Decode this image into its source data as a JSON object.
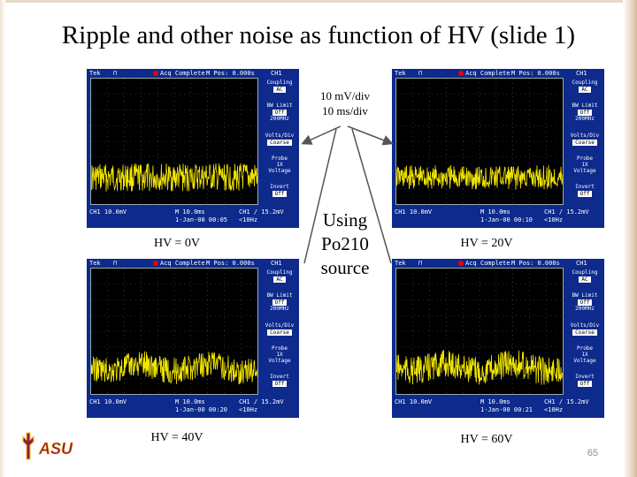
{
  "slide": {
    "title": "Ripple and other noise as function of HV (slide 1)",
    "settings_line1": "10 mV/div",
    "settings_line2": "10 ms/div",
    "source_line1": "Using",
    "source_line2": "Po210",
    "source_line3": "source",
    "page_number": "65"
  },
  "logo": {
    "text": "ASU",
    "color": "#8c1d40",
    "accent": "#ffc627"
  },
  "scope_ui": {
    "brand": "Tek",
    "trigger_state": "Acq Complete",
    "pos": "M Pos: 0.000s",
    "channel": "CH1",
    "coupling_label": "Coupling",
    "coupling_value": "AC",
    "bw_label": "BW Limit",
    "bw_value": "Off",
    "bw_freq": "200MHz",
    "volts_label": "Volts/Div",
    "volts_value": "Coarse",
    "probe_label": "Probe",
    "probe_value1": "1X",
    "probe_value2": "Voltage",
    "invert_label": "Invert",
    "invert_value": "Off",
    "ch_scale": "CH1 10.0mV",
    "time_scale": "M 10.0ms",
    "trigger": "CH1 / 15.2mV",
    "freq": "<10Hz"
  },
  "panels": [
    {
      "label": "HV = 0V",
      "time_readout": "1-Jan-00 00:05"
    },
    {
      "label": "HV = 20V",
      "time_readout": "1-Jan-00 00:10"
    },
    {
      "label": "HV = 40V",
      "time_readout": "1-Jan-00 00:20"
    },
    {
      "label": "HV = 60V",
      "time_readout": "1-Jan-00 00:21"
    }
  ]
}
